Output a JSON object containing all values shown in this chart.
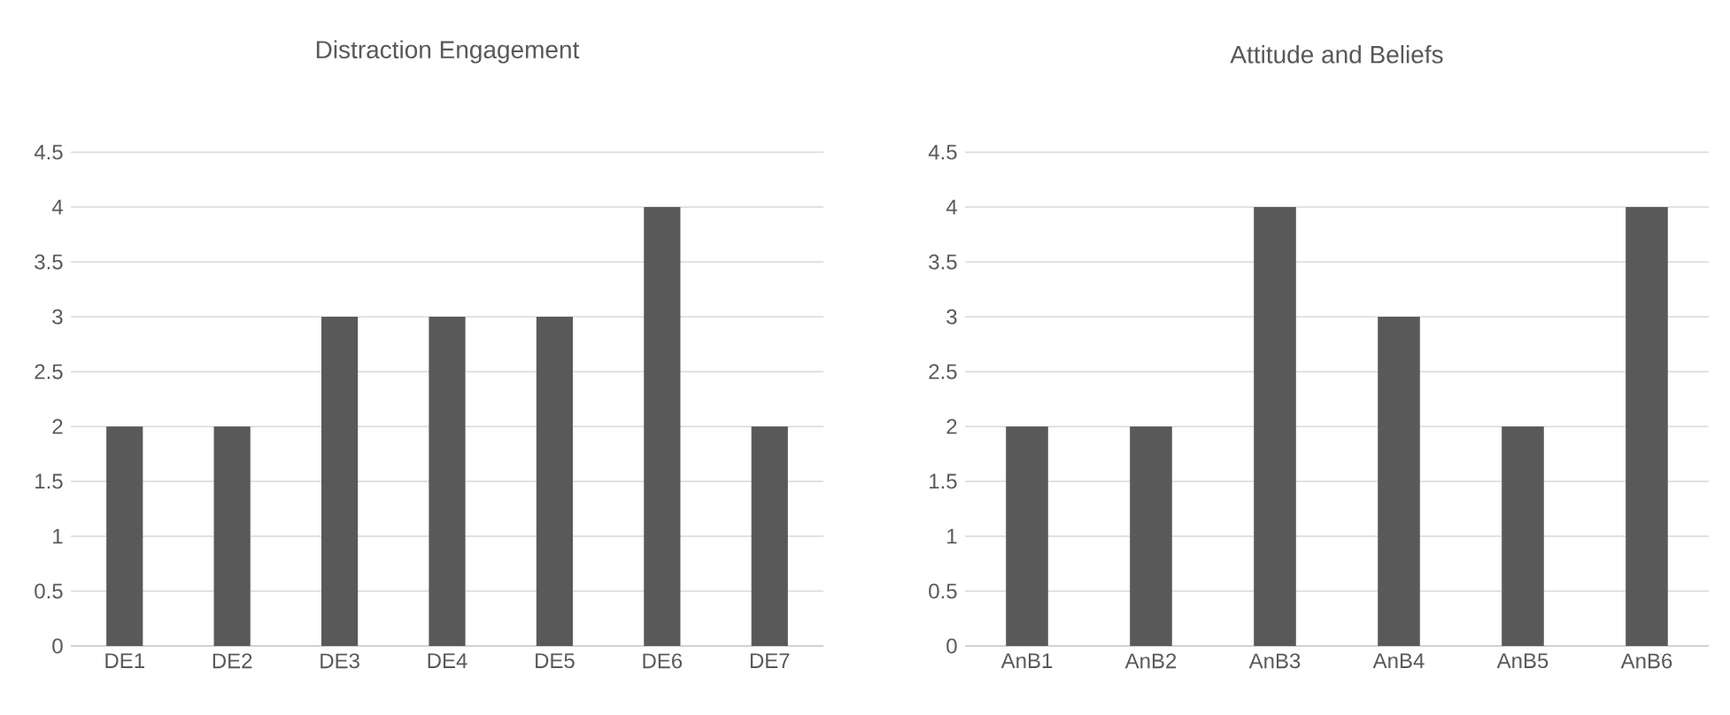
{
  "chart_data": [
    {
      "type": "bar",
      "title": "Distraction Engagement",
      "categories": [
        "DE1",
        "DE2",
        "DE3",
        "DE4",
        "DE5",
        "DE6",
        "DE7"
      ],
      "values": [
        2,
        2,
        3,
        3,
        3,
        4,
        2
      ],
      "color": "#595959",
      "ylim": [
        0,
        4.5
      ],
      "yticks": [
        0,
        0.5,
        1,
        1.5,
        2,
        2.5,
        3,
        3.5,
        4,
        4.5
      ],
      "grid": "y"
    },
    {
      "type": "bar",
      "title": "Attitude and Beliefs",
      "categories": [
        "AnB1",
        "AnB2",
        "AnB3",
        "AnB4",
        "AnB5",
        "AnB6"
      ],
      "values": [
        2,
        2,
        4,
        3,
        2,
        4
      ],
      "color": "#595959",
      "ylim": [
        0,
        4.5
      ],
      "yticks": [
        0,
        0.5,
        1,
        1.5,
        2,
        2.5,
        3,
        3.5,
        4,
        4.5
      ],
      "grid": "y"
    }
  ]
}
